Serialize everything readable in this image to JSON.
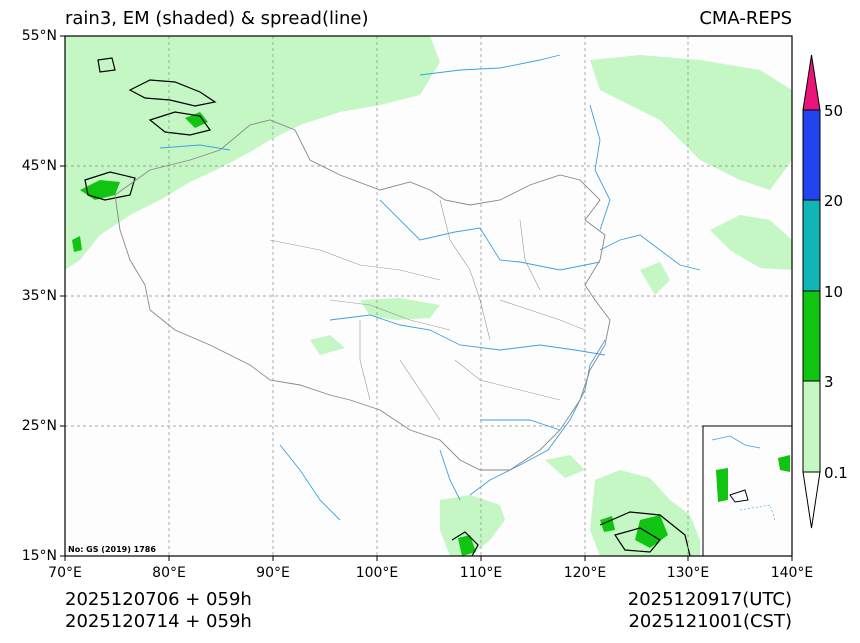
{
  "title_left": "rain3, EM (shaded) & spread(line)",
  "title_right": "CMA-REPS",
  "map": {
    "lat_labels": [
      "55°N",
      "45°N",
      "35°N",
      "25°N",
      "15°N"
    ],
    "lon_labels": [
      "70°E",
      "80°E",
      "90°E",
      "100°E",
      "110°E",
      "120°E",
      "130°E",
      "140°E"
    ],
    "map_approval_no": "No: GS (2019) 1786"
  },
  "colorbar": {
    "labels": [
      "50",
      "20",
      "10",
      "3",
      "0.1"
    ],
    "colors": {
      "over": "#e8157a",
      "c50": "#2244ee",
      "c20": "#11b5b5",
      "c10": "#11c411",
      "c3": "#c4f7c4",
      "under": "#ffffff"
    }
  },
  "footer": {
    "init_utc": "2025120706  +  059h",
    "init_cst": "2025120714  +  059h",
    "valid_utc": "2025120917(UTC)",
    "valid_cst": "2025121001(CST)"
  },
  "colors": {
    "light_green": "#c4f7c4",
    "green": "#11c411",
    "river": "#3aa0e6",
    "border": "#888888",
    "grid": "#8a8a8a"
  }
}
